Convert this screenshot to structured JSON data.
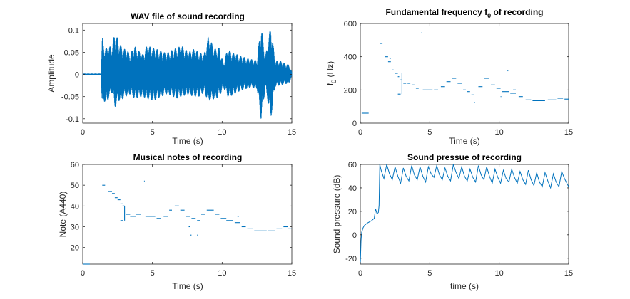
{
  "figure": {
    "background": "#ffffff",
    "axes_color": "#262626",
    "line_color": "#0072bd"
  },
  "chart_data": [
    {
      "id": "wav",
      "type": "line",
      "title": "WAV file of sound recording",
      "xlabel": "Time (s)",
      "ylabel": "Amplitude",
      "xlim": [
        0,
        15
      ],
      "ylim": [
        -0.11,
        0.115
      ],
      "xticks": [
        0,
        5,
        10,
        15
      ],
      "yticks": [
        -0.1,
        -0.05,
        0,
        0.05,
        0.1
      ],
      "ytick_labels": [
        "-0.1",
        "-0.05",
        "0",
        "0.05",
        "0.1"
      ],
      "series": [
        {
          "style": "waveform-envelope",
          "x": [
            0,
            1.3,
            1.4,
            1.5,
            1.7,
            2.1,
            2.3,
            2.6,
            2.9,
            3.1,
            3.4,
            3.7,
            4.3,
            4.6,
            5.1,
            5.5,
            6.0,
            6.4,
            6.7,
            7.1,
            7.6,
            7.9,
            8.4,
            8.7,
            9.0,
            9.5,
            9.8,
            10.1,
            10.4,
            10.7,
            11.1,
            11.5,
            12.0,
            12.5,
            12.8,
            13.1,
            13.5,
            13.8,
            14.1,
            14.5,
            14.8,
            15.0
          ],
          "upper": [
            0.002,
            0.002,
            0.085,
            0.065,
            0.06,
            0.065,
            0.095,
            0.075,
            0.055,
            0.06,
            0.045,
            0.065,
            0.045,
            0.065,
            0.06,
            0.055,
            0.048,
            0.055,
            0.06,
            0.065,
            0.05,
            0.058,
            0.05,
            0.045,
            0.085,
            0.058,
            0.06,
            0.025,
            0.058,
            0.05,
            0.045,
            0.04,
            0.035,
            0.032,
            0.112,
            0.04,
            0.112,
            0.03,
            0.032,
            0.025,
            0.022,
            0.005
          ],
          "lower": [
            -0.002,
            -0.002,
            -0.078,
            -0.06,
            -0.065,
            -0.04,
            -0.075,
            -0.06,
            -0.055,
            -0.05,
            -0.045,
            -0.055,
            -0.05,
            -0.055,
            -0.06,
            -0.052,
            -0.045,
            -0.048,
            -0.055,
            -0.05,
            -0.045,
            -0.05,
            -0.05,
            -0.04,
            -0.06,
            -0.055,
            -0.05,
            -0.03,
            -0.05,
            -0.048,
            -0.04,
            -0.035,
            -0.03,
            -0.032,
            -0.105,
            -0.03,
            -0.1,
            -0.028,
            -0.025,
            -0.022,
            -0.02,
            -0.005
          ]
        }
      ]
    },
    {
      "id": "f0",
      "type": "scatter",
      "title": "Fundamental frequency f",
      "title_sub": "0",
      "title_suffix": " of recording",
      "xlabel": "Time (s)",
      "ylabel": "f",
      "ylabel_sub": "0",
      "ylabel_suffix": " (Hz)",
      "xlim": [
        0,
        15
      ],
      "ylim": [
        0,
        600
      ],
      "xticks": [
        0,
        5,
        10,
        15
      ],
      "yticks": [
        0,
        200,
        400,
        600
      ],
      "segments": [
        [
          0.1,
          0.6,
          60
        ],
        [
          1.4,
          1.6,
          480
        ],
        [
          1.8,
          2.0,
          400
        ],
        [
          2.1,
          2.2,
          390
        ],
        [
          2.0,
          2.2,
          370
        ],
        [
          2.3,
          2.4,
          320
        ],
        [
          2.5,
          2.7,
          300
        ],
        [
          2.7,
          2.8,
          280
        ],
        [
          2.85,
          3.0,
          260
        ],
        [
          2.7,
          2.9,
          175
        ],
        [
          3.1,
          3.3,
          240
        ],
        [
          3.4,
          3.6,
          240
        ],
        [
          3.7,
          3.9,
          230
        ],
        [
          4.0,
          4.2,
          210
        ],
        [
          4.5,
          5.2,
          200
        ],
        [
          5.3,
          5.6,
          200
        ],
        [
          5.8,
          6.1,
          220
        ],
        [
          6.2,
          6.5,
          250
        ],
        [
          6.6,
          6.9,
          270
        ],
        [
          7.0,
          7.3,
          240
        ],
        [
          7.4,
          7.6,
          200
        ],
        [
          7.7,
          7.9,
          190
        ],
        [
          8.0,
          8.2,
          170
        ],
        [
          8.5,
          8.8,
          220
        ],
        [
          8.9,
          9.3,
          270
        ],
        [
          9.4,
          9.7,
          230
        ],
        [
          9.8,
          10.1,
          210
        ],
        [
          10.2,
          10.7,
          190
        ],
        [
          10.8,
          11.2,
          180
        ],
        [
          11.4,
          11.7,
          160
        ],
        [
          11.9,
          12.3,
          140
        ],
        [
          12.4,
          13.3,
          135
        ],
        [
          13.5,
          14.1,
          140
        ],
        [
          14.2,
          14.6,
          150
        ],
        [
          14.7,
          15.0,
          145
        ],
        [
          4.4,
          4.45,
          545
        ],
        [
          10.6,
          10.65,
          315
        ],
        [
          11.0,
          11.2,
          200
        ],
        [
          8.2,
          8.25,
          125
        ],
        [
          10.1,
          10.15,
          160
        ]
      ],
      "vlines": [
        [
          3.0,
          175,
          300
        ]
      ]
    },
    {
      "id": "notes",
      "type": "scatter",
      "title": "Musical notes of recording",
      "xlabel": "Time (s)",
      "ylabel": "Note (A440)",
      "xlim": [
        0,
        15
      ],
      "ylim": [
        12,
        60
      ],
      "xticks": [
        0,
        5,
        10,
        15
      ],
      "yticks": [
        20,
        30,
        40,
        50,
        60
      ],
      "segments": [
        [
          0.0,
          0.5,
          12
        ],
        [
          1.4,
          1.6,
          50
        ],
        [
          1.8,
          2.1,
          47
        ],
        [
          2.1,
          2.3,
          46
        ],
        [
          2.3,
          2.5,
          44
        ],
        [
          2.5,
          2.7,
          43
        ],
        [
          2.7,
          2.9,
          41
        ],
        [
          2.85,
          3.0,
          40
        ],
        [
          2.7,
          2.9,
          33
        ],
        [
          3.1,
          3.4,
          36
        ],
        [
          3.4,
          3.8,
          35
        ],
        [
          3.8,
          4.2,
          36
        ],
        [
          4.5,
          5.2,
          35
        ],
        [
          5.3,
          5.6,
          34
        ],
        [
          5.8,
          6.1,
          35
        ],
        [
          6.2,
          6.4,
          38
        ],
        [
          6.6,
          6.9,
          40
        ],
        [
          7.0,
          7.3,
          38
        ],
        [
          7.4,
          7.7,
          35
        ],
        [
          7.8,
          8.1,
          34
        ],
        [
          8.2,
          8.4,
          33
        ],
        [
          8.5,
          8.8,
          36
        ],
        [
          8.9,
          9.4,
          38
        ],
        [
          9.5,
          9.8,
          36
        ],
        [
          9.9,
          10.3,
          34
        ],
        [
          10.3,
          10.8,
          33
        ],
        [
          10.9,
          11.3,
          32
        ],
        [
          11.4,
          11.7,
          30
        ],
        [
          11.8,
          12.2,
          29
        ],
        [
          12.3,
          13.2,
          28
        ],
        [
          13.3,
          13.8,
          28
        ],
        [
          13.9,
          14.3,
          29
        ],
        [
          14.4,
          14.7,
          30
        ],
        [
          14.7,
          15.0,
          29
        ],
        [
          4.4,
          4.45,
          52
        ],
        [
          8.2,
          8.25,
          26
        ],
        [
          7.6,
          7.7,
          30
        ],
        [
          11.1,
          11.2,
          35
        ],
        [
          7.7,
          7.8,
          26
        ]
      ],
      "vlines": [
        [
          3.0,
          33,
          40
        ]
      ]
    },
    {
      "id": "spl",
      "type": "line",
      "title": "Sound pressue of recording",
      "xlabel": "time (s)",
      "ylabel": "Sound pressure (dB)",
      "xlim": [
        0,
        15
      ],
      "ylim": [
        -25,
        60
      ],
      "xticks": [
        0,
        5,
        10,
        15
      ],
      "yticks": [
        -20,
        0,
        20,
        40,
        60
      ],
      "series": [
        {
          "x": [
            0,
            0.05,
            0.1,
            0.2,
            0.3,
            0.5,
            0.8,
            1.0,
            1.1,
            1.15,
            1.2,
            1.3,
            1.35,
            1.4,
            1.5,
            1.7,
            1.9,
            2.1,
            2.3,
            2.5,
            2.7,
            2.9,
            3.1,
            3.3,
            3.5,
            3.7,
            3.9,
            4.1,
            4.3,
            4.5,
            4.7,
            4.9,
            5.1,
            5.3,
            5.5,
            5.7,
            5.9,
            6.1,
            6.3,
            6.5,
            6.7,
            6.9,
            7.1,
            7.3,
            7.5,
            7.7,
            7.9,
            8.1,
            8.3,
            8.5,
            8.7,
            8.9,
            9.1,
            9.3,
            9.5,
            9.7,
            9.9,
            10.1,
            10.3,
            10.5,
            10.7,
            10.9,
            11.1,
            11.3,
            11.5,
            11.7,
            11.9,
            12.1,
            12.3,
            12.5,
            12.7,
            12.9,
            13.1,
            13.3,
            13.5,
            13.7,
            13.9,
            14.1,
            14.3,
            14.5,
            14.7,
            15.0
          ],
          "y": [
            -25,
            -5,
            2,
            6,
            8,
            10,
            12,
            14,
            22,
            20,
            18,
            19,
            25,
            60,
            55,
            48,
            60,
            52,
            47,
            58,
            50,
            44,
            57,
            50,
            46,
            59,
            51,
            47,
            58,
            50,
            45,
            58,
            52,
            49,
            59,
            51,
            47,
            57,
            50,
            46,
            60,
            53,
            48,
            58,
            50,
            46,
            56,
            49,
            45,
            59,
            51,
            47,
            58,
            50,
            44,
            56,
            49,
            44,
            55,
            48,
            45,
            56,
            49,
            44,
            54,
            47,
            43,
            55,
            47,
            42,
            53,
            45,
            41,
            53,
            46,
            40,
            52,
            45,
            41,
            54,
            48,
            41
          ]
        }
      ]
    }
  ]
}
